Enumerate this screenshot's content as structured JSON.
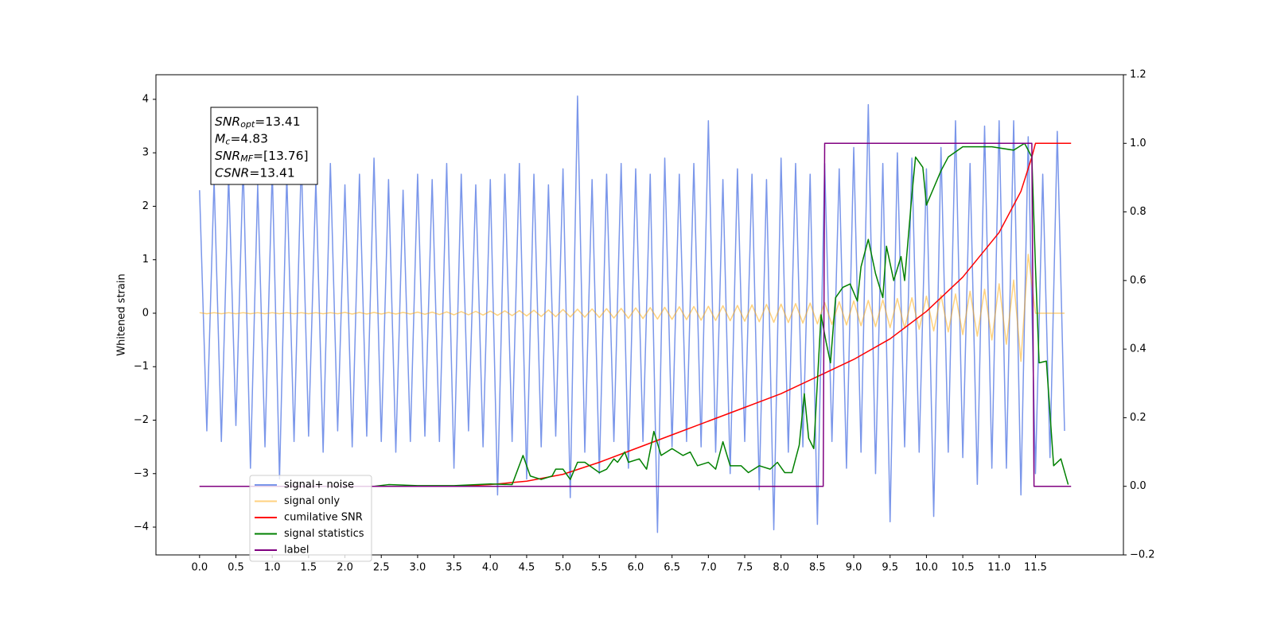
{
  "chart_data": {
    "type": "line",
    "ylabel": "Whitened strain",
    "xlim": [
      -0.6,
      12.71
    ],
    "ylim": [
      -4.52,
      4.46
    ],
    "y2lim": [
      -0.2,
      1.2
    ],
    "xticks": [
      {
        "value": 0,
        "label": "0.0"
      },
      0.5,
      {
        "value": 1,
        "label": "1.0"
      },
      1.5,
      {
        "value": 2,
        "label": "2.0"
      },
      2.5,
      {
        "value": 3,
        "label": "3.0"
      },
      3.5,
      {
        "value": 4,
        "label": "4.0"
      },
      4.5,
      {
        "value": 5,
        "label": "5.0"
      },
      5.5,
      {
        "value": 6,
        "label": "6.0"
      },
      6.5,
      {
        "value": 7,
        "label": "7.0"
      },
      7.5,
      {
        "value": 8,
        "label": "8.0"
      },
      8.5,
      {
        "value": 9,
        "label": "9.0"
      },
      9.5,
      {
        "value": 10,
        "label": "10.0"
      },
      10.5,
      {
        "value": 11,
        "label": "11.0"
      },
      11.5
    ],
    "yticks": [
      {
        "value": -4,
        "label": "−4"
      },
      {
        "value": -3,
        "label": "−3"
      },
      {
        "value": -2,
        "label": "−2"
      },
      {
        "value": -1,
        "label": "−1"
      },
      0,
      1,
      2,
      3,
      4
    ],
    "y2ticks": [
      {
        "value": -0.2,
        "label": "−0.2"
      },
      {
        "value": 0,
        "label": "0.0"
      },
      0.2,
      0.4,
      0.6,
      0.8,
      {
        "value": 1,
        "label": "1.0"
      },
      1.2
    ],
    "legend": "lower left",
    "annotation": [
      {
        "main": "SNR",
        "sub": "opt",
        "rest": "=13.41"
      },
      {
        "main": "M",
        "sub": "c",
        "rest": "=4.83"
      },
      {
        "main": "SNR",
        "sub": "MF",
        "rest": "=[13.76]"
      },
      {
        "main": "CSNR",
        "rest": "=13.41"
      }
    ],
    "x": [
      0.0,
      0.1,
      0.2,
      0.3,
      0.4,
      0.5,
      0.6,
      0.7,
      0.8,
      0.9,
      1.0,
      1.1,
      1.2,
      1.3,
      1.4,
      1.5,
      1.6,
      1.7,
      1.8,
      1.9,
      2.0,
      2.1,
      2.2,
      2.3,
      2.4,
      2.5,
      2.6,
      2.7,
      2.8,
      2.9,
      3.0,
      3.1,
      3.2,
      3.3,
      3.4,
      3.5,
      3.6,
      3.7,
      3.8,
      3.9,
      4.0,
      4.1,
      4.2,
      4.3,
      4.4,
      4.5,
      4.6,
      4.7,
      4.8,
      4.9,
      5.0,
      5.1,
      5.2,
      5.3,
      5.4,
      5.5,
      5.6,
      5.7,
      5.8,
      5.9,
      6.0,
      6.1,
      6.2,
      6.3,
      6.4,
      6.5,
      6.6,
      6.7,
      6.8,
      6.9,
      7.0,
      7.1,
      7.2,
      7.3,
      7.4,
      7.5,
      7.6,
      7.7,
      7.8,
      7.9,
      8.0,
      8.1,
      8.2,
      8.3,
      8.4,
      8.5,
      8.6,
      8.7,
      8.8,
      8.9,
      9.0,
      9.1,
      9.2,
      9.3,
      9.4,
      9.5,
      9.6,
      9.7,
      9.8,
      9.9,
      10.0,
      10.1,
      10.2,
      10.3,
      10.4,
      10.5,
      10.6,
      10.7,
      10.8,
      10.9,
      11.0,
      11.1,
      11.2,
      11.3,
      11.4,
      11.5,
      11.6,
      11.7,
      11.8,
      11.9
    ],
    "series": [
      {
        "name": "signal+ noise",
        "color": "royalblue",
        "alpha": 0.7,
        "values": [
          2.3,
          -2.2,
          2.5,
          -2.4,
          2.6,
          -2.1,
          2.8,
          -2.9,
          2.4,
          -2.5,
          2.7,
          -3.1,
          2.6,
          -2.4,
          2.9,
          -2.3,
          2.5,
          -2.6,
          2.8,
          -2.2,
          2.4,
          -2.5,
          2.6,
          -2.3,
          2.9,
          -2.4,
          2.5,
          -2.6,
          2.3,
          -2.4,
          2.6,
          -2.3,
          2.5,
          -2.4,
          2.8,
          -2.9,
          2.6,
          -2.2,
          2.4,
          -2.5,
          2.5,
          -3.4,
          2.6,
          -2.4,
          2.8,
          -3.1,
          2.6,
          -2.5,
          2.4,
          -2.3,
          2.7,
          -3.45,
          4.06,
          -2.6,
          2.5,
          -3.0,
          2.6,
          -2.4,
          2.8,
          -2.9,
          2.7,
          -2.4,
          2.6,
          -4.1,
          2.9,
          -2.5,
          2.6,
          -2.4,
          2.8,
          -2.5,
          3.6,
          -2.6,
          2.5,
          -3.0,
          2.7,
          -2.4,
          2.6,
          -3.3,
          2.5,
          -4.05,
          2.9,
          -2.6,
          2.8,
          -2.5,
          2.6,
          -3.95,
          2.8,
          -2.4,
          2.7,
          -2.9,
          3.1,
          -2.6,
          3.9,
          -3.0,
          2.8,
          -3.9,
          3.0,
          -2.5,
          2.9,
          -2.6,
          2.7,
          -3.8,
          3.1,
          -2.6,
          3.6,
          -2.7,
          2.8,
          -3.2,
          3.5,
          -2.9,
          3.6,
          -2.9,
          3.6,
          -3.4,
          3.3,
          -3.0,
          2.6,
          -2.7,
          3.4,
          -2.2
        ]
      },
      {
        "name": "signal only",
        "color": "orange",
        "alpha": 0.5,
        "values": [
          0.01,
          -0.01,
          0.01,
          -0.01,
          0.01,
          -0.01,
          0.01,
          -0.01,
          0.01,
          -0.01,
          0.01,
          -0.01,
          0.01,
          -0.01,
          0.01,
          -0.01,
          0.01,
          -0.01,
          0.01,
          -0.01,
          0.015,
          -0.015,
          0.015,
          -0.015,
          0.015,
          -0.015,
          0.015,
          -0.015,
          0.015,
          -0.015,
          0.02,
          -0.02,
          0.02,
          -0.025,
          0.025,
          -0.03,
          0.03,
          -0.03,
          0.035,
          -0.035,
          0.04,
          -0.04,
          0.045,
          -0.045,
          0.05,
          -0.05,
          0.055,
          -0.06,
          0.06,
          -0.065,
          0.07,
          -0.07,
          0.075,
          -0.075,
          0.08,
          -0.08,
          0.085,
          -0.09,
          0.09,
          -0.095,
          0.1,
          -0.1,
          0.105,
          -0.11,
          0.11,
          -0.115,
          0.12,
          -0.12,
          0.125,
          -0.13,
          0.13,
          -0.135,
          0.14,
          -0.14,
          0.145,
          -0.15,
          0.155,
          -0.16,
          0.165,
          -0.17,
          0.17,
          -0.175,
          0.18,
          -0.185,
          0.19,
          -0.2,
          0.2,
          -0.21,
          0.215,
          -0.22,
          0.23,
          -0.235,
          0.24,
          -0.25,
          0.25,
          -0.27,
          0.275,
          -0.28,
          0.29,
          -0.3,
          0.32,
          -0.33,
          0.34,
          -0.35,
          0.36,
          -0.4,
          0.41,
          -0.43,
          0.45,
          -0.5,
          0.55,
          -0.58,
          0.62,
          -0.9,
          1.1,
          0,
          0,
          0,
          0,
          0
        ]
      },
      {
        "name": "cumilative SNR",
        "color": "red",
        "axis": "y2",
        "x": [
          0,
          3.5,
          4.0,
          4.5,
          5,
          5.5,
          6,
          6.5,
          7,
          7.5,
          8,
          8.5,
          9,
          9.5,
          10,
          10.5,
          11,
          11.3,
          11.45,
          11.5,
          11.99
        ],
        "values": [
          0,
          0,
          0.005,
          0.015,
          0.035,
          0.07,
          0.11,
          0.15,
          0.19,
          0.23,
          0.27,
          0.32,
          0.37,
          0.43,
          0.51,
          0.61,
          0.74,
          0.86,
          0.96,
          1,
          1
        ]
      },
      {
        "name": "signal statistics",
        "color": "green",
        "axis": "y2",
        "x": [
          2.4,
          2.6,
          3.0,
          3.5,
          4.0,
          4.3,
          4.45,
          4.55,
          4.7,
          4.85,
          4.9,
          5.0,
          5.1,
          5.2,
          5.3,
          5.5,
          5.6,
          5.7,
          5.75,
          5.85,
          5.9,
          6.05,
          6.15,
          6.25,
          6.35,
          6.5,
          6.65,
          6.75,
          6.85,
          7.0,
          7.1,
          7.2,
          7.3,
          7.45,
          7.55,
          7.7,
          7.85,
          7.95,
          8.05,
          8.15,
          8.25,
          8.32,
          8.38,
          8.45,
          8.55,
          8.62,
          8.68,
          8.75,
          8.85,
          8.95,
          9.05,
          9.1,
          9.2,
          9.3,
          9.4,
          9.45,
          9.5,
          9.55,
          9.65,
          9.7,
          9.8,
          9.85,
          9.95,
          10.0,
          10.1,
          10.2,
          10.3,
          10.5,
          10.7,
          10.9,
          11.2,
          11.35,
          11.45,
          11.5,
          11.55,
          11.65,
          11.75,
          11.85,
          11.95
        ],
        "values": [
          0,
          0.005,
          0.002,
          0.002,
          0.007,
          0.005,
          0.09,
          0.03,
          0.02,
          0.03,
          0.05,
          0.05,
          0.02,
          0.07,
          0.07,
          0.04,
          0.05,
          0.08,
          0.07,
          0.1,
          0.07,
          0.08,
          0.05,
          0.16,
          0.09,
          0.11,
          0.09,
          0.1,
          0.06,
          0.07,
          0.05,
          0.13,
          0.06,
          0.06,
          0.04,
          0.06,
          0.05,
          0.07,
          0.04,
          0.04,
          0.12,
          0.27,
          0.14,
          0.11,
          0.5,
          0.42,
          0.36,
          0.55,
          0.58,
          0.59,
          0.54,
          0.64,
          0.72,
          0.62,
          0.55,
          0.7,
          0.65,
          0.6,
          0.67,
          0.6,
          0.85,
          0.96,
          0.93,
          0.82,
          0.87,
          0.92,
          0.96,
          0.99,
          0.99,
          0.99,
          0.98,
          1.0,
          0.96,
          0.64,
          0.36,
          0.365,
          0.06,
          0.08,
          0.005
        ]
      },
      {
        "name": "label",
        "color": "purple",
        "axis": "y2",
        "x": [
          0,
          8.58,
          8.6,
          11.45,
          11.48,
          11.99
        ],
        "values": [
          0,
          0,
          1,
          1,
          0,
          0
        ]
      }
    ]
  }
}
